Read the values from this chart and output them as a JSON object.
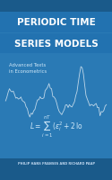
{
  "bg_color": "#2a7ab5",
  "dark_blue": "#1a5a8a",
  "light_blue": "#3a8fc5",
  "title_line1": "PERIODIC TIME",
  "title_line2": "SERIES MODELS",
  "subtitle": "Advanced Texts\nin Econometrics",
  "formula": "L = ∑(eᵢ² + 2 lo",
  "authors": "PHILIP HANS FRANSES AND RICHARD PAAP",
  "title_bg": "#2272b0",
  "top_bar_color": "#1a5a8a",
  "bottom_bar_color": "#1a5a8a",
  "title_color": "#ffffff",
  "subtitle_color": "#d0e8f8",
  "author_color": "#c0d8f0",
  "formula_color": "#d0e8f8"
}
